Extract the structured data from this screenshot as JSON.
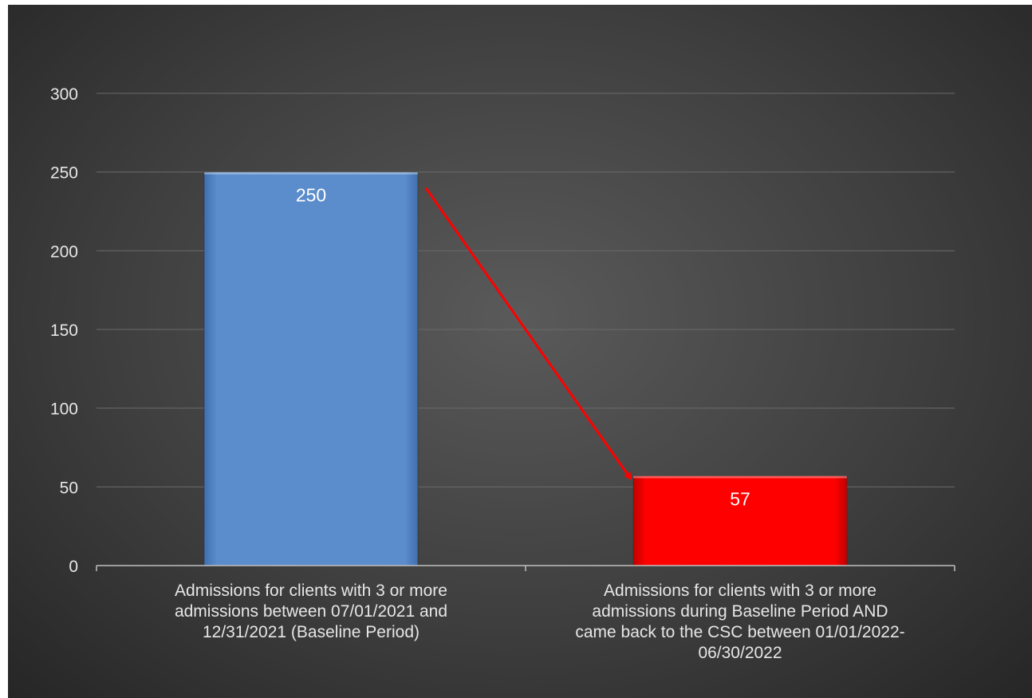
{
  "chart_data": {
    "type": "bar",
    "categories": [
      "Admissions for clients with 3 or more admissions between 07/01/2021 and 12/31/2021 (Baseline Period)",
      "Admissions for clients with 3 or more admissions during Baseline Period AND came back to the CSC between 01/01/2022-06/30/2022"
    ],
    "category_lines": [
      [
        "Admissions for clients with 3 or more",
        "admissions between 07/01/2021 and",
        "12/31/2021 (Baseline Period)"
      ],
      [
        "Admissions for clients with 3 or more",
        "admissions during Baseline Period AND",
        "came back to the CSC between 01/01/2022-",
        "06/30/2022"
      ]
    ],
    "values": [
      250,
      57
    ],
    "data_labels": [
      "250",
      "57"
    ],
    "bar_colors": [
      "#5b8ccb",
      "#ff0000"
    ],
    "ylim": [
      0,
      300
    ],
    "yticks": [
      "0",
      "50",
      "100",
      "150",
      "200",
      "250",
      "300"
    ],
    "title": "",
    "xlabel": "",
    "ylabel": "",
    "grid": true,
    "legend": "none",
    "annotation": {
      "type": "arrow",
      "from_category": 0,
      "to_category": 1,
      "color": "#ff0000"
    }
  }
}
